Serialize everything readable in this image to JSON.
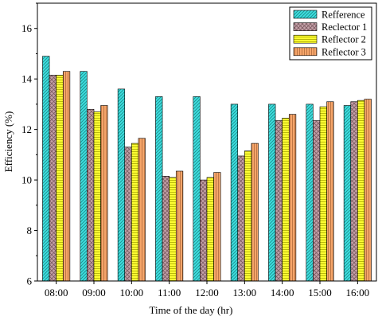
{
  "chart_data": {
    "type": "bar",
    "xlabel": "Time of the day (hr)",
    "ylabel": "Efficiency (%)",
    "ylim": [
      6,
      17
    ],
    "yticks": [
      6,
      8,
      10,
      12,
      14,
      16
    ],
    "categories": [
      "08:00",
      "09:00",
      "10:00",
      "11:00",
      "12:00",
      "13:00",
      "14:00",
      "15:00",
      "16:00"
    ],
    "series": [
      {
        "name": "Refference",
        "color": "#3ee0e0",
        "pattern": "diag-dense",
        "values": [
          14.9,
          14.3,
          13.6,
          13.3,
          13.3,
          13.0,
          13.0,
          13.0,
          12.95
        ]
      },
      {
        "name": "Reclector 1",
        "color": "#c4a0a8",
        "pattern": "diag-cross",
        "values": [
          14.15,
          12.8,
          11.3,
          10.15,
          10.0,
          10.95,
          12.35,
          12.35,
          13.1
        ]
      },
      {
        "name": "Reflector 2",
        "color": "#ffff33",
        "pattern": "horiz",
        "values": [
          14.15,
          12.7,
          11.45,
          10.1,
          10.1,
          11.15,
          12.45,
          12.9,
          13.15
        ]
      },
      {
        "name": "Reflector 3",
        "color": "#f5a56a",
        "pattern": "vert",
        "values": [
          14.3,
          12.95,
          11.65,
          10.35,
          10.3,
          11.45,
          12.6,
          13.1,
          13.2
        ]
      }
    ],
    "legend": "top-right",
    "grid": false
  }
}
